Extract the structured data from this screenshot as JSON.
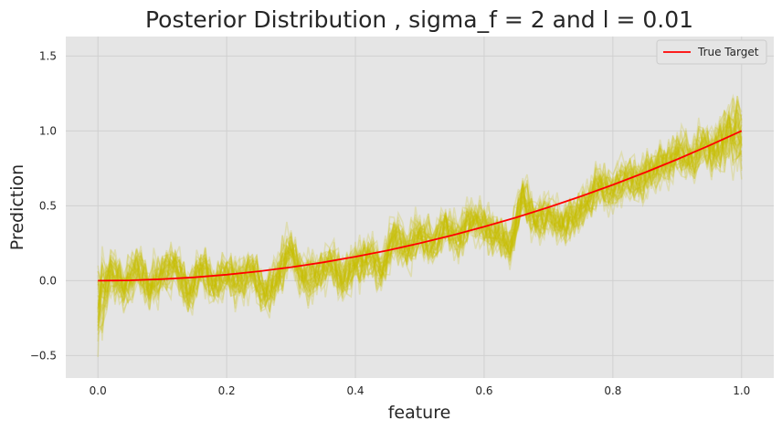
{
  "chart_data": {
    "type": "line",
    "title": "Posterior Distribution , sigma_f = 2 and l = 0.01",
    "xlabel": "feature",
    "ylabel": "Prediction",
    "xlim": [
      -0.05,
      1.05
    ],
    "ylim": [
      -0.65,
      1.63
    ],
    "xticks": [
      0.0,
      0.2,
      0.4,
      0.6,
      0.8,
      1.0
    ],
    "xtick_labels": [
      "0.0",
      "0.2",
      "0.4",
      "0.6",
      "0.8",
      "1.0"
    ],
    "yticks": [
      -0.5,
      0.0,
      0.5,
      1.0,
      1.5
    ],
    "ytick_labels": [
      "−0.5",
      "0.0",
      "0.5",
      "1.0",
      "1.5"
    ],
    "grid": true,
    "legend_position": "top-right",
    "colors": {
      "background": "#e5e5e5",
      "grid": "#d0d0d0",
      "target": "#ff0000",
      "samples": "#c8c000"
    },
    "series": [
      {
        "name": "True Target",
        "x": [
          0.0,
          0.05,
          0.1,
          0.15,
          0.2,
          0.25,
          0.3,
          0.35,
          0.4,
          0.45,
          0.5,
          0.55,
          0.6,
          0.65,
          0.7,
          0.75,
          0.8,
          0.85,
          0.9,
          0.95,
          1.0
        ],
        "values": [
          0.0,
          0.0025,
          0.01,
          0.0225,
          0.04,
          0.0625,
          0.09,
          0.1225,
          0.16,
          0.2025,
          0.25,
          0.3025,
          0.36,
          0.4225,
          0.49,
          0.5625,
          0.64,
          0.7225,
          0.81,
          0.9025,
          1.0
        ]
      }
    ],
    "posterior_samples": {
      "count": 40,
      "x": [
        0.0,
        0.02,
        0.04,
        0.06,
        0.08,
        0.1,
        0.12,
        0.14,
        0.16,
        0.18,
        0.2,
        0.22,
        0.24,
        0.26,
        0.28,
        0.3,
        0.32,
        0.34,
        0.36,
        0.38,
        0.4,
        0.42,
        0.44,
        0.46,
        0.48,
        0.5,
        0.52,
        0.54,
        0.56,
        0.58,
        0.6,
        0.62,
        0.64,
        0.66,
        0.68,
        0.7,
        0.72,
        0.74,
        0.76,
        0.78,
        0.8,
        0.82,
        0.84,
        0.86,
        0.88,
        0.9,
        0.92,
        0.94,
        0.96,
        0.98,
        1.0
      ],
      "mean": [
        -0.18,
        0.08,
        -0.05,
        0.1,
        -0.04,
        0.06,
        0.12,
        -0.08,
        0.09,
        -0.02,
        0.05,
        0.0,
        0.08,
        -0.1,
        0.04,
        0.2,
        0.02,
        0.04,
        0.14,
        0.0,
        0.12,
        0.16,
        0.06,
        0.3,
        0.2,
        0.32,
        0.24,
        0.38,
        0.26,
        0.42,
        0.36,
        0.3,
        0.22,
        0.58,
        0.4,
        0.46,
        0.36,
        0.42,
        0.52,
        0.64,
        0.6,
        0.7,
        0.66,
        0.72,
        0.78,
        0.86,
        0.8,
        0.9,
        0.88,
        0.98,
        0.96
      ],
      "spread": [
        0.25,
        0.12,
        0.12,
        0.1,
        0.1,
        0.1,
        0.1,
        0.1,
        0.1,
        0.1,
        0.1,
        0.1,
        0.1,
        0.1,
        0.1,
        0.1,
        0.1,
        0.1,
        0.1,
        0.1,
        0.1,
        0.1,
        0.1,
        0.1,
        0.1,
        0.1,
        0.1,
        0.1,
        0.1,
        0.1,
        0.1,
        0.1,
        0.1,
        0.1,
        0.1,
        0.1,
        0.1,
        0.1,
        0.1,
        0.1,
        0.1,
        0.1,
        0.1,
        0.1,
        0.1,
        0.1,
        0.1,
        0.1,
        0.12,
        0.16,
        0.22
      ],
      "opacity": 0.22
    }
  }
}
